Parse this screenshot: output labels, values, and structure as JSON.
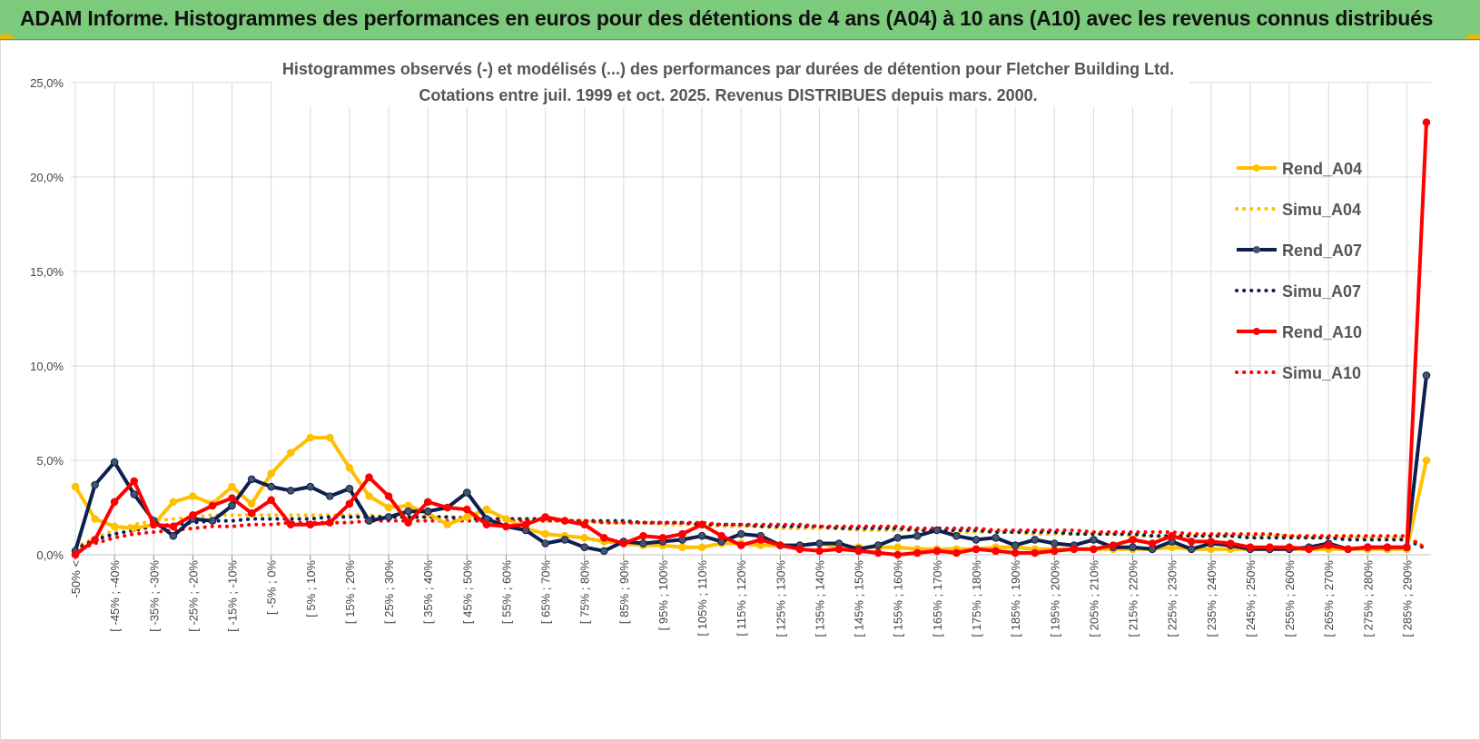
{
  "header": {
    "title": "ADAM Informe. Histogrammes des performances en euros pour des détentions de 4 ans (A04) à 10 ans (A10) avec les revenus connus distribués"
  },
  "chart_data": {
    "type": "line",
    "title": "Histogrammes observés (-) et modélisés (...) des performances par durées de détention pour Fletcher Building Ltd.",
    "subtitle": "Cotations entre juil. 1999 et oct. 2025. Revenus DISTRIBUES depuis mars. 2000.",
    "xlabel": "",
    "ylabel": "",
    "ylim": [
      0,
      25
    ],
    "y_ticks": [
      "0,0%",
      "5,0%",
      "10,0%",
      "15,0%",
      "20,0%",
      "25,0%"
    ],
    "grid": true,
    "legend_position": "right",
    "x_tick_labels": [
      "-50% <",
      "[ -45% ; -40%",
      "[ -35% ; -30%",
      "[ -25% ; -20%",
      "[ -15% ; -10%",
      "[ -5% ; 0%",
      "[ 5% ; 10%",
      "[ 15% ; 20%",
      "[ 25% ; 30%",
      "[ 35% ; 40%",
      "[ 45% ; 50%",
      "[ 55% ; 60%",
      "[ 65% ; 70%",
      "[ 75% ; 80%",
      "[ 85% ; 90%",
      "[ 95% ; 100%",
      "[ 105% ; 110%",
      "[ 115% ; 120%",
      "[ 125% ; 130%",
      "[ 135% ; 140%",
      "[ 145% ; 150%",
      "[ 155% ; 160%",
      "[ 165% ; 170%",
      "[ 175% ; 180%",
      "[ 185% ; 190%",
      "[ 195% ; 200%",
      "[ 205% ; 210%",
      "[ 215% ; 220%",
      "[ 225% ; 230%",
      "[ 235% ; 240%",
      "[ 245% ; 250%",
      "[ 255% ; 260%",
      "[ 265% ; 270%",
      "[ 275% ; 280%",
      "[ 285% ; 290%"
    ],
    "categories_count": 70,
    "series": [
      {
        "name": "Rend_A04",
        "style": "solid",
        "color": "#FFC000",
        "values": [
          3.6,
          1.9,
          1.5,
          1.4,
          1.6,
          2.8,
          3.1,
          2.7,
          3.6,
          2.7,
          4.3,
          5.4,
          6.2,
          6.2,
          4.6,
          3.1,
          2.5,
          2.6,
          2.2,
          1.6,
          2.0,
          2.4,
          1.9,
          1.4,
          1.1,
          1.0,
          0.9,
          0.7,
          0.6,
          0.5,
          0.5,
          0.4,
          0.4,
          0.6,
          0.6,
          0.5,
          0.5,
          0.5,
          0.6,
          0.4,
          0.4,
          0.4,
          0.4,
          0.3,
          0.3,
          0.3,
          0.3,
          0.4,
          0.4,
          0.3,
          0.3,
          0.3,
          0.3,
          0.3,
          0.3,
          0.3,
          0.4,
          0.3,
          0.3,
          0.3,
          0.3,
          0.3,
          0.3,
          0.3,
          0.3,
          0.3,
          0.3,
          0.3,
          0.3,
          5.0
        ]
      },
      {
        "name": "Simu_A04",
        "style": "dotted",
        "color": "#FFC000",
        "values": [
          0.4,
          0.9,
          1.3,
          1.6,
          1.8,
          1.9,
          2.0,
          2.1,
          2.1,
          2.1,
          2.1,
          2.1,
          2.1,
          2.1,
          2.1,
          2.1,
          2.0,
          2.0,
          2.0,
          2.0,
          2.0,
          1.9,
          1.9,
          1.9,
          1.8,
          1.8,
          1.8,
          1.7,
          1.7,
          1.7,
          1.6,
          1.6,
          1.6,
          1.5,
          1.5,
          1.5,
          1.4,
          1.4,
          1.4,
          1.4,
          1.3,
          1.3,
          1.3,
          1.3,
          1.2,
          1.2,
          1.2,
          1.2,
          1.2,
          1.1,
          1.1,
          1.1,
          1.1,
          1.1,
          1.0,
          1.0,
          1.0,
          1.0,
          1.0,
          1.0,
          1.0,
          1.0,
          1.0,
          0.9,
          0.9,
          0.9,
          0.9,
          0.9,
          0.9,
          0.4
        ]
      },
      {
        "name": "Rend_A07",
        "style": "solid",
        "color": "#0C1F4F",
        "values": [
          0.2,
          3.7,
          4.9,
          3.2,
          1.8,
          1.0,
          1.9,
          1.8,
          2.6,
          4.0,
          3.6,
          3.4,
          3.6,
          3.1,
          3.5,
          1.8,
          2.0,
          2.3,
          2.3,
          2.5,
          3.3,
          1.9,
          1.5,
          1.3,
          0.6,
          0.8,
          0.4,
          0.2,
          0.7,
          0.6,
          0.7,
          0.8,
          1.0,
          0.7,
          1.1,
          1.0,
          0.5,
          0.5,
          0.6,
          0.6,
          0.3,
          0.5,
          0.9,
          1.0,
          1.3,
          1.0,
          0.8,
          0.9,
          0.5,
          0.8,
          0.6,
          0.5,
          0.8,
          0.4,
          0.4,
          0.3,
          0.7,
          0.3,
          0.6,
          0.5,
          0.3,
          0.3,
          0.3,
          0.4,
          0.6,
          0.3,
          0.4,
          0.4,
          0.4,
          9.5
        ]
      },
      {
        "name": "Simu_A07",
        "style": "dotted",
        "color": "#0C1F4F",
        "values": [
          0.3,
          0.8,
          1.1,
          1.3,
          1.5,
          1.6,
          1.7,
          1.8,
          1.8,
          1.9,
          1.9,
          1.9,
          1.9,
          2.0,
          2.0,
          2.0,
          2.0,
          2.0,
          2.0,
          2.0,
          1.9,
          1.9,
          1.9,
          1.9,
          1.9,
          1.8,
          1.8,
          1.8,
          1.8,
          1.7,
          1.7,
          1.7,
          1.6,
          1.6,
          1.6,
          1.5,
          1.5,
          1.5,
          1.5,
          1.4,
          1.4,
          1.4,
          1.4,
          1.3,
          1.3,
          1.3,
          1.3,
          1.2,
          1.2,
          1.2,
          1.2,
          1.1,
          1.1,
          1.1,
          1.1,
          1.0,
          1.0,
          1.0,
          1.0,
          1.0,
          0.9,
          0.9,
          0.9,
          0.9,
          0.9,
          0.8,
          0.8,
          0.8,
          0.8,
          0.3
        ]
      },
      {
        "name": "Rend_A10",
        "style": "solid",
        "color": "#FF0000",
        "values": [
          0.0,
          0.8,
          2.8,
          3.9,
          1.6,
          1.5,
          2.1,
          2.6,
          3.0,
          2.2,
          2.9,
          1.6,
          1.6,
          1.7,
          2.7,
          4.1,
          3.1,
          1.7,
          2.8,
          2.5,
          2.4,
          1.6,
          1.5,
          1.6,
          2.0,
          1.8,
          1.6,
          0.9,
          0.6,
          1.0,
          0.9,
          1.1,
          1.6,
          1.0,
          0.5,
          0.8,
          0.5,
          0.3,
          0.2,
          0.3,
          0.2,
          0.1,
          0.0,
          0.1,
          0.2,
          0.1,
          0.3,
          0.2,
          0.1,
          0.1,
          0.2,
          0.3,
          0.3,
          0.5,
          0.8,
          0.6,
          1.0,
          0.7,
          0.7,
          0.6,
          0.4,
          0.4,
          0.4,
          0.3,
          0.5,
          0.3,
          0.4,
          0.4,
          0.4,
          22.9
        ]
      },
      {
        "name": "Simu_A10",
        "style": "dotted",
        "color": "#FF0000",
        "values": [
          0.2,
          0.6,
          0.9,
          1.1,
          1.2,
          1.3,
          1.4,
          1.5,
          1.5,
          1.6,
          1.6,
          1.7,
          1.7,
          1.7,
          1.7,
          1.8,
          1.8,
          1.8,
          1.8,
          1.8,
          1.8,
          1.8,
          1.8,
          1.8,
          1.8,
          1.8,
          1.8,
          1.7,
          1.7,
          1.7,
          1.7,
          1.7,
          1.7,
          1.6,
          1.6,
          1.6,
          1.6,
          1.6,
          1.5,
          1.5,
          1.5,
          1.5,
          1.5,
          1.4,
          1.4,
          1.4,
          1.4,
          1.3,
          1.3,
          1.3,
          1.3,
          1.3,
          1.2,
          1.2,
          1.2,
          1.2,
          1.2,
          1.1,
          1.1,
          1.1,
          1.1,
          1.1,
          1.0,
          1.0,
          1.0,
          1.0,
          1.0,
          1.0,
          1.0,
          0.3
        ]
      }
    ]
  }
}
